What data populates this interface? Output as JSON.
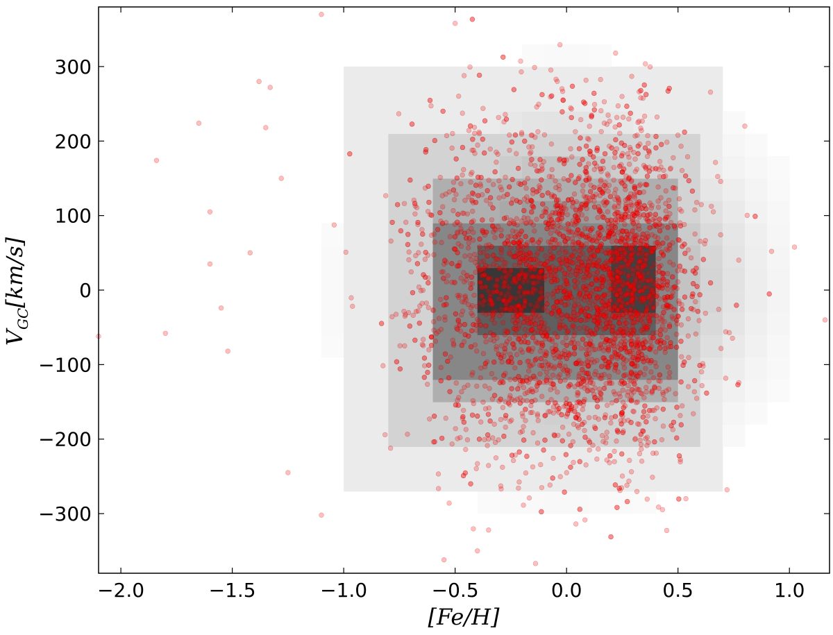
{
  "chart_data": {
    "type": "scatter",
    "title": "",
    "xlabel": "[Fe/H]",
    "ylabel": "V_GC[km/s]",
    "ylabel_main": "V",
    "ylabel_sub": "GC",
    "ylabel_unit": "[km/s]",
    "xlim": [
      -2.1,
      1.18
    ],
    "ylim": [
      -380,
      380
    ],
    "x_ticks": [
      -2.0,
      -1.5,
      -1.0,
      -0.5,
      0.0,
      0.5,
      1.0
    ],
    "x_tick_labels": [
      "−2.0",
      "−1.5",
      "−1.0",
      "−0.5",
      "0.0",
      "0.5",
      "1.0"
    ],
    "y_ticks": [
      -300,
      -200,
      -100,
      0,
      100,
      200,
      300
    ],
    "y_tick_labels": [
      "−300",
      "−200",
      "−100",
      "0",
      "100",
      "200",
      "300"
    ],
    "grid": false,
    "background_density": {
      "description": "2D histogram (gray) of star counts, bin width ~0.1 dex x 30 km/s",
      "center": [
        0.0,
        10
      ],
      "core_regions": [
        {
          "x": [
            -0.38,
            -0.12
          ],
          "y": [
            -20,
            40
          ],
          "level": 1.0
        },
        {
          "x": [
            0.2,
            0.38
          ],
          "y": [
            -20,
            70
          ],
          "level": 0.95
        }
      ],
      "levels": [
        {
          "x": [
            -0.38,
            0.38
          ],
          "y": [
            -50,
            70
          ],
          "level": 0.8
        },
        {
          "x": [
            -0.62,
            0.47
          ],
          "y": [
            -110,
            100
          ],
          "level": 0.6
        },
        {
          "x": [
            -0.62,
            0.55
          ],
          "y": [
            -160,
            160
          ],
          "level": 0.4
        },
        {
          "x": [
            -0.8,
            0.62
          ],
          "y": [
            -210,
            220
          ],
          "level": 0.22
        },
        {
          "x": [
            -1.0,
            0.72
          ],
          "y": [
            -270,
            290
          ],
          "level": 0.1
        }
      ]
    },
    "scatter": {
      "color": "#ff0000",
      "alpha": 0.25,
      "n_points": 4000,
      "x_mean": -0.05,
      "x_std": 0.33,
      "y_mean": 0,
      "y_std": 110,
      "outliers": [
        [
          -2.1,
          -62
        ],
        [
          -1.84,
          174
        ],
        [
          -1.8,
          -58
        ],
        [
          -1.65,
          224
        ],
        [
          -1.6,
          105
        ],
        [
          -1.6,
          35
        ],
        [
          -1.55,
          -24
        ],
        [
          -1.52,
          -82
        ],
        [
          -1.42,
          50
        ],
        [
          -1.38,
          280
        ],
        [
          -1.35,
          218
        ],
        [
          -1.33,
          272
        ],
        [
          -1.28,
          150
        ],
        [
          -1.25,
          -245
        ],
        [
          -1.1,
          -302
        ],
        [
          -1.1,
          370
        ],
        [
          -0.55,
          -362
        ],
        [
          -0.5,
          358
        ],
        [
          -0.4,
          -350
        ],
        [
          -0.35,
          -322
        ],
        [
          0.22,
          318
        ],
        [
          0.92,
          52
        ],
        [
          1.16,
          -40
        ],
        [
          0.8,
          220
        ],
        [
          0.72,
          -268
        ]
      ]
    }
  }
}
